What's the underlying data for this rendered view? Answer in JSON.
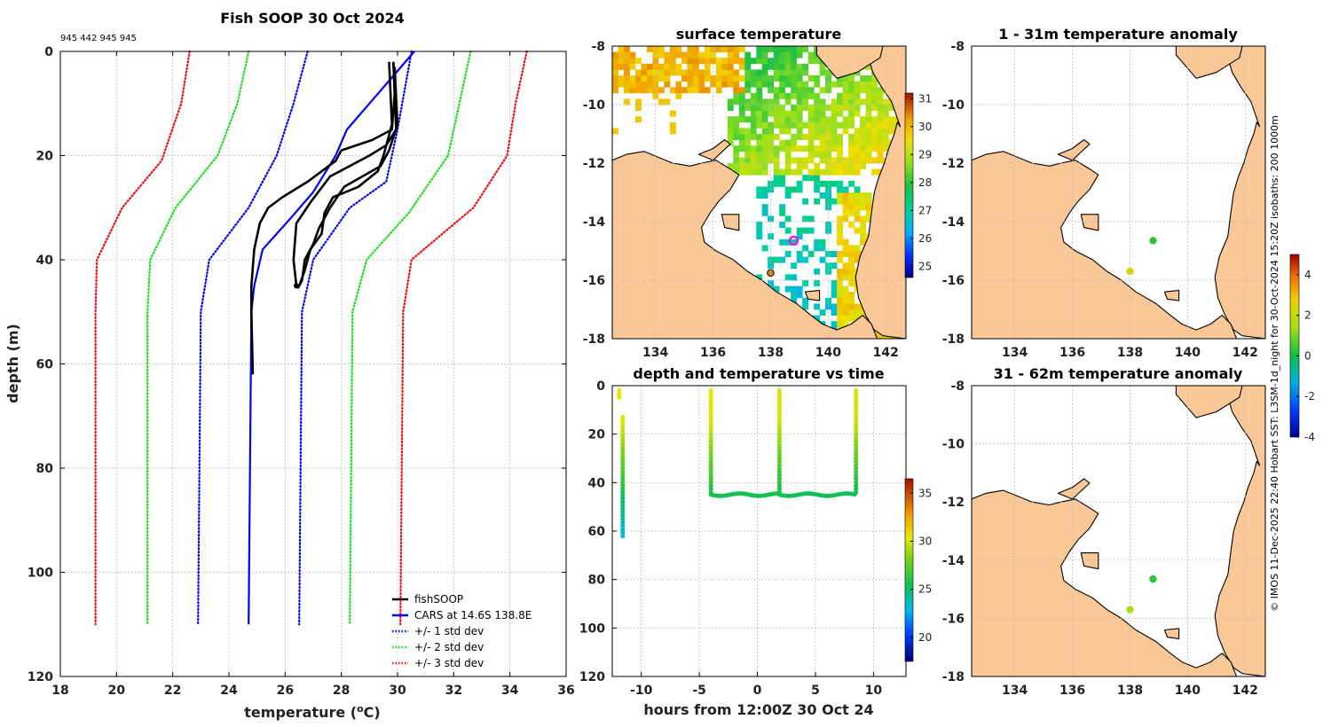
{
  "header": {
    "ids": "945 442 945 945"
  },
  "credit": "© IMOS 11-Dec-2025 22:40 Hobart SST: L3SM-1d_night for 30-Oct-2024 15:20Z isobaths: 200  1000m",
  "colors": {
    "fish": "#000000",
    "cars": "#0000ff",
    "sd1": "#0000ff",
    "sd2": "#22dd22",
    "sd3": "#ee1111",
    "land": "#f9c896",
    "coast": "#000000",
    "marker_ring": "#ff00ff"
  },
  "chart_data": [
    {
      "id": "profile",
      "type": "line",
      "title": "Fish SOOP 30 Oct 2024",
      "xlabel": "temperature (",
      "xlabel_sup": "o",
      "xlabel_tail": "C)",
      "ylabel": "depth (m)",
      "xlim": [
        18,
        36
      ],
      "ylim": [
        0,
        120
      ],
      "xticks": [
        18,
        20,
        22,
        24,
        26,
        28,
        30,
        32,
        34,
        36
      ],
      "yticks": [
        0,
        20,
        40,
        60,
        80,
        100,
        120
      ],
      "legend": [
        "fishSOOP",
        "CARS at 14.6S 138.8E",
        "+/- 1 std dev",
        "+/- 2 std dev",
        "+/- 3 std dev"
      ],
      "legend_position": "bottom-right",
      "series": [
        {
          "name": "CARS",
          "color": "#0000ff",
          "style": "solid",
          "points": [
            [
              30.6,
              0
            ],
            [
              29.8,
              5
            ],
            [
              29.0,
              10
            ],
            [
              28.2,
              15
            ],
            [
              27.8,
              20
            ],
            [
              27.0,
              27
            ],
            [
              26.2,
              32
            ],
            [
              25.2,
              38
            ],
            [
              24.9,
              45
            ],
            [
              24.8,
              50
            ],
            [
              24.7,
              110
            ]
          ]
        },
        {
          "name": "-1sd",
          "color": "#0000ff",
          "style": "dotted",
          "points": [
            [
              26.8,
              0
            ],
            [
              26.3,
              10
            ],
            [
              25.7,
              20
            ],
            [
              24.7,
              30
            ],
            [
              23.3,
              40
            ],
            [
              23.0,
              50
            ],
            [
              22.9,
              110
            ]
          ]
        },
        {
          "name": "+1sd",
          "color": "#0000ff",
          "style": "dotted",
          "points": [
            [
              30.5,
              0
            ],
            [
              30.0,
              15
            ],
            [
              29.6,
              25
            ],
            [
              28.3,
              30
            ],
            [
              27.0,
              40
            ],
            [
              26.6,
              50
            ],
            [
              26.5,
              110
            ]
          ]
        },
        {
          "name": "-2sd",
          "color": "#22dd22",
          "style": "dotted",
          "points": [
            [
              24.7,
              0
            ],
            [
              24.3,
              10
            ],
            [
              23.6,
              20
            ],
            [
              22.1,
              30
            ],
            [
              21.2,
              40
            ],
            [
              21.1,
              50
            ],
            [
              21.1,
              110
            ]
          ]
        },
        {
          "name": "+2sd",
          "color": "#22dd22",
          "style": "dotted",
          "points": [
            [
              32.6,
              0
            ],
            [
              32.2,
              10
            ],
            [
              31.8,
              20
            ],
            [
              30.4,
              31
            ],
            [
              28.9,
              40
            ],
            [
              28.4,
              50
            ],
            [
              28.3,
              110
            ]
          ]
        },
        {
          "name": "-3sd",
          "color": "#ee1111",
          "style": "dotted",
          "points": [
            [
              22.6,
              0
            ],
            [
              22.3,
              10
            ],
            [
              21.6,
              21
            ],
            [
              20.2,
              30
            ],
            [
              19.3,
              40
            ],
            [
              19.25,
              50
            ],
            [
              19.25,
              110
            ]
          ]
        },
        {
          "name": "+3sd",
          "color": "#ee1111",
          "style": "dotted",
          "points": [
            [
              34.6,
              0
            ],
            [
              34.2,
              10
            ],
            [
              33.9,
              20
            ],
            [
              32.7,
              30
            ],
            [
              30.5,
              40
            ],
            [
              30.2,
              50
            ],
            [
              30.1,
              110
            ]
          ]
        },
        {
          "name": "fish1",
          "color": "#000000",
          "style": "solid",
          "points": [
            [
              29.85,
              2
            ],
            [
              29.9,
              8
            ],
            [
              29.95,
              15
            ],
            [
              29.6,
              18
            ],
            [
              29.0,
              20
            ],
            [
              27.6,
              24
            ],
            [
              26.9,
              29
            ],
            [
              26.4,
              33
            ],
            [
              26.3,
              40
            ],
            [
              26.4,
              45
            ]
          ]
        },
        {
          "name": "fish2",
          "color": "#000000",
          "style": "solid",
          "points": [
            [
              29.85,
              2
            ],
            [
              29.9,
              8
            ],
            [
              29.8,
              15
            ],
            [
              29.1,
              17
            ],
            [
              28.0,
              19
            ],
            [
              27.8,
              21
            ],
            [
              26.8,
              25
            ],
            [
              26.2,
              27
            ],
            [
              25.9,
              28
            ],
            [
              25.4,
              30
            ],
            [
              25.1,
              33
            ],
            [
              24.9,
              38
            ],
            [
              24.8,
              45
            ],
            [
              24.8,
              50
            ],
            [
              24.85,
              62
            ]
          ]
        },
        {
          "name": "fish3",
          "color": "#000000",
          "style": "solid",
          "points": [
            [
              29.7,
              2
            ],
            [
              29.75,
              8
            ],
            [
              29.8,
              14
            ],
            [
              29.5,
              20
            ],
            [
              29.3,
              23
            ],
            [
              28.6,
              26
            ],
            [
              27.7,
              28
            ],
            [
              27.4,
              31
            ],
            [
              27.3,
              35
            ],
            [
              26.9,
              38
            ],
            [
              26.7,
              42
            ],
            [
              26.5,
              45
            ]
          ]
        },
        {
          "name": "fish4",
          "color": "#000000",
          "style": "solid",
          "points": [
            [
              29.9,
              3
            ],
            [
              29.95,
              9
            ],
            [
              30.0,
              14
            ],
            [
              29.7,
              19
            ],
            [
              29.4,
              22
            ],
            [
              28.1,
              26
            ],
            [
              27.6,
              30
            ],
            [
              27.2,
              34
            ],
            [
              27.0,
              37
            ],
            [
              26.7,
              40
            ],
            [
              26.6,
              44
            ],
            [
              26.45,
              45.5
            ]
          ]
        }
      ]
    },
    {
      "id": "sst",
      "type": "heatmap",
      "title": "surface temperature",
      "xlim": [
        132.5,
        142.7
      ],
      "ylim": [
        -18,
        -8
      ],
      "xticks": [
        134,
        136,
        138,
        140,
        142
      ],
      "yticks": [
        -8,
        -10,
        -12,
        -14,
        -16,
        -18
      ],
      "colorbar": {
        "range": [
          24.6,
          31.2
        ],
        "ticks": [
          25,
          26,
          27,
          28,
          29,
          30,
          31
        ]
      },
      "markers": [
        {
          "lon": 138.8,
          "lat": -14.65,
          "kind": "ring"
        },
        {
          "lon": 138.0,
          "lat": -15.75,
          "kind": "dot"
        }
      ]
    },
    {
      "id": "anom1",
      "type": "scatter",
      "title": "1 - 31m temperature anomaly",
      "xlim": [
        132.5,
        142.7
      ],
      "ylim": [
        -18,
        -8
      ],
      "xticks": [
        134,
        136,
        138,
        140,
        142
      ],
      "yticks": [
        -8,
        -10,
        -12,
        -14,
        -16,
        -18
      ],
      "points": [
        {
          "lon": 138.8,
          "lat": -14.65,
          "anomaly": 0.3
        },
        {
          "lon": 138.0,
          "lat": -15.7,
          "anomaly": 2.3
        }
      ],
      "colorbar": {
        "range": [
          -4,
          5
        ],
        "ticks": [
          -4,
          -2,
          0,
          2,
          4
        ]
      }
    },
    {
      "id": "anom2",
      "type": "scatter",
      "title": "31 - 62m temperature anomaly",
      "xlim": [
        132.5,
        142.7
      ],
      "ylim": [
        -18,
        -8
      ],
      "xticks": [
        134,
        136,
        138,
        140,
        142
      ],
      "yticks": [
        -8,
        -10,
        -12,
        -14,
        -16,
        -18
      ],
      "points": [
        {
          "lon": 138.8,
          "lat": -14.65,
          "anomaly": 0.3
        },
        {
          "lon": 138.0,
          "lat": -15.7,
          "anomaly": 1.6
        }
      ]
    },
    {
      "id": "time",
      "type": "scatter",
      "title": "depth and temperature vs time",
      "xlabel": "hours from 12:00Z 30 Oct 24",
      "xlim": [
        -12.5,
        12.8
      ],
      "ylim": [
        0,
        120
      ],
      "xticks": [
        -10,
        -5,
        0,
        5,
        10
      ],
      "yticks": [
        0,
        20,
        40,
        60,
        80,
        100,
        120
      ],
      "colorbar": {
        "range": [
          17.5,
          36.5
        ],
        "ticks": [
          20,
          25,
          30,
          35
        ]
      },
      "casts": [
        {
          "t": -11.9,
          "from": 2,
          "to": 5,
          "surfaceTemp": 30.6
        },
        {
          "t": -11.6,
          "from": 13,
          "to": 62,
          "surfaceTemp": 30.4
        },
        {
          "t": -4.0,
          "from": 2,
          "to": 45,
          "surfaceTemp": 30.4,
          "bottom_track_to": 1.9
        },
        {
          "t": 1.9,
          "from": 2,
          "to": 45,
          "surfaceTemp": 30.2,
          "bottom_track_to": 8.5
        },
        {
          "t": 8.5,
          "from": 2,
          "to": 45,
          "surfaceTemp": 30.1
        }
      ]
    }
  ]
}
